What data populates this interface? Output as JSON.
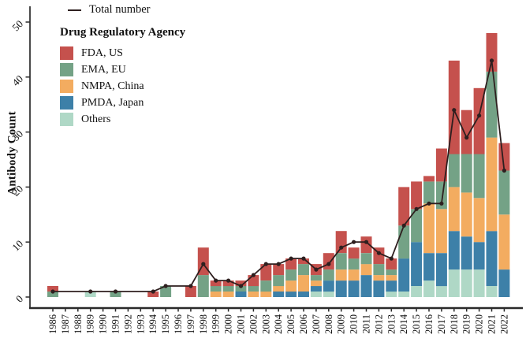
{
  "figure": {
    "background": "#FFFFFF",
    "axis_color": "#2A2A2A",
    "ylabel": "Antibody Count",
    "legend_total_label": "Total number",
    "legend_title": "Drug Regulatory Agency"
  },
  "chart_data": {
    "type": "bar",
    "subtype": "stacked-bar-with-total-line",
    "title": "",
    "xlabel": "",
    "ylabel": "Antibody Count",
    "ylim": [
      0,
      50
    ],
    "yticks": [
      0,
      10,
      20,
      30,
      40,
      50
    ],
    "grid": false,
    "legend_position": "top-left-inside",
    "legend_title": "Drug Regulatory Agency",
    "x_tick_rotation_deg": 90,
    "y_tick_rotation_deg": 45,
    "categories": [
      "1986",
      "1987",
      "1988",
      "1989",
      "1990",
      "1991",
      "1992",
      "1993",
      "1994",
      "1995",
      "1996",
      "1997",
      "1998",
      "1999",
      "2000",
      "2001",
      "2002",
      "2003",
      "2004",
      "2005",
      "2006",
      "2007",
      "2008",
      "2009",
      "2010",
      "2011",
      "2012",
      "2013",
      "2014",
      "2015",
      "2016",
      "2017",
      "2018",
      "2019",
      "2020",
      "2021",
      "2022"
    ],
    "stack_order_bottom_to_top": [
      "Others",
      "PMDA, Japan",
      "NMPA, China",
      "EMA, EU",
      "FDA, US"
    ],
    "series": [
      {
        "name": "FDA, US",
        "color": "#C5514D",
        "values": [
          1,
          0,
          0,
          0,
          0,
          0,
          0,
          0,
          1,
          0,
          0,
          2,
          5,
          1,
          1,
          1,
          2,
          3,
          2,
          2,
          1,
          2,
          3,
          4,
          2,
          3,
          3,
          2,
          7,
          5,
          1,
          6,
          17,
          8,
          12,
          7,
          5
        ]
      },
      {
        "name": "EMA, EU",
        "color": "#74A286",
        "values": [
          1,
          0,
          0,
          0,
          0,
          1,
          0,
          0,
          0,
          2,
          0,
          0,
          4,
          1,
          1,
          1,
          1,
          2,
          2,
          2,
          2,
          1,
          2,
          3,
          2,
          2,
          2,
          1,
          6,
          6,
          4,
          5,
          6,
          7,
          8,
          12,
          8
        ]
      },
      {
        "name": "NMPA, China",
        "color": "#F3AC60",
        "values": [
          0,
          0,
          0,
          0,
          0,
          0,
          0,
          0,
          0,
          0,
          0,
          0,
          0,
          1,
          1,
          0,
          1,
          1,
          1,
          2,
          3,
          1,
          0,
          2,
          2,
          2,
          1,
          1,
          0,
          0,
          9,
          8,
          8,
          8,
          8,
          17,
          10
        ]
      },
      {
        "name": "PMDA, Japan",
        "color": "#3D80A8",
        "values": [
          0,
          0,
          0,
          0,
          0,
          0,
          0,
          0,
          0,
          0,
          0,
          0,
          0,
          0,
          0,
          1,
          0,
          0,
          1,
          1,
          1,
          1,
          2,
          3,
          3,
          4,
          3,
          2,
          6,
          8,
          5,
          6,
          7,
          6,
          5,
          10,
          5
        ]
      },
      {
        "name": "Others",
        "color": "#AFD8C6",
        "values": [
          0,
          0,
          0,
          1,
          0,
          0,
          0,
          0,
          0,
          0,
          0,
          0,
          0,
          0,
          0,
          0,
          0,
          0,
          0,
          0,
          0,
          1,
          1,
          0,
          0,
          0,
          0,
          1,
          1,
          2,
          3,
          2,
          5,
          5,
          5,
          2,
          0
        ]
      }
    ],
    "line_series": {
      "name": "Total number",
      "color": "#2E1F1F",
      "values": [
        1,
        null,
        null,
        1,
        null,
        1,
        null,
        null,
        1,
        2,
        null,
        2,
        6,
        3,
        3,
        2,
        4,
        6,
        6,
        7,
        7,
        5,
        6,
        9,
        10,
        10,
        8,
        7,
        13,
        16,
        17,
        17,
        34,
        29,
        33,
        43,
        23
      ]
    }
  }
}
